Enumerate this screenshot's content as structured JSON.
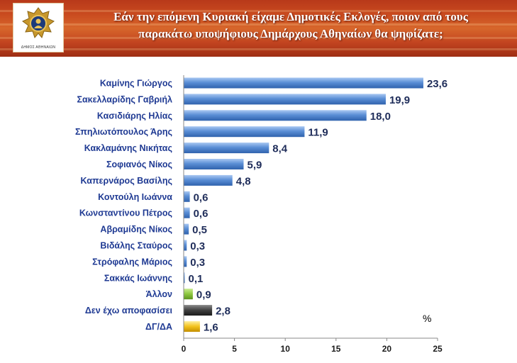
{
  "header": {
    "title_line1": "Εάν την επόμενη Κυριακή είχαμε Δημοτικές Εκλογές, ποιον από τους",
    "title_line2": "παρακάτω υποψήφιους Δημάρχους Αθηναίων θα ψηφίζατε;",
    "logo_caption": "ΔΗΜΟΣ ΑΘΗΝΑΙΩΝ"
  },
  "colors": {
    "blue_bar": "#5b8fd6",
    "green_bar": "#8cc63f",
    "dark_bar": "#404040",
    "yellow_bar": "#f2c21b"
  },
  "chart_data": {
    "type": "bar",
    "orientation": "horizontal",
    "title": "Εάν την επόμενη Κυριακή είχαμε Δημοτικές Εκλογές, ποιον από τους παρακάτω υποψήφιους Δημάρχους Αθηναίων θα ψηφίζατε;",
    "unit_label": "%",
    "xlim": [
      0,
      25
    ],
    "xticks": [
      0,
      5,
      10,
      15,
      20,
      25
    ],
    "grid": false,
    "legend": "none",
    "categories": [
      "Καμίνης Γιώργος",
      "Σακελλαρίδης Γαβριήλ",
      "Κασιδιάρης Ηλίας",
      "Σπηλιωτόπουλος Άρης",
      "Κακλαμάνης Νικήτας",
      "Σοφιανός Νίκος",
      "Καπερνάρος Βασίλης",
      "Κοντούλη Ιωάννα",
      "Κωνσταντίνου Πέτρος",
      "Αβραμίδης Νίκος",
      "Βιδάλης Σταύρος",
      "Στρόφαλης Μάριος",
      "Σακκάς Ιωάννης",
      "Άλλον",
      "Δεν έχω αποφασίσει",
      "ΔΓ/ΔΑ"
    ],
    "values": [
      23.6,
      19.9,
      18.0,
      11.9,
      8.4,
      5.9,
      4.8,
      0.6,
      0.6,
      0.5,
      0.3,
      0.3,
      0.1,
      0.9,
      2.8,
      1.6
    ],
    "value_labels": [
      "23,6",
      "19,9",
      "18,0",
      "11,9",
      "8,4",
      "5,9",
      "4,8",
      "0,6",
      "0,6",
      "0,5",
      "0,3",
      "0,3",
      "0,1",
      "0,9",
      "2,8",
      "1,6"
    ],
    "bar_colors": [
      "blue",
      "blue",
      "blue",
      "blue",
      "blue",
      "blue",
      "blue",
      "blue",
      "blue",
      "blue",
      "blue",
      "blue",
      "blue",
      "green",
      "dark",
      "yellow"
    ]
  }
}
